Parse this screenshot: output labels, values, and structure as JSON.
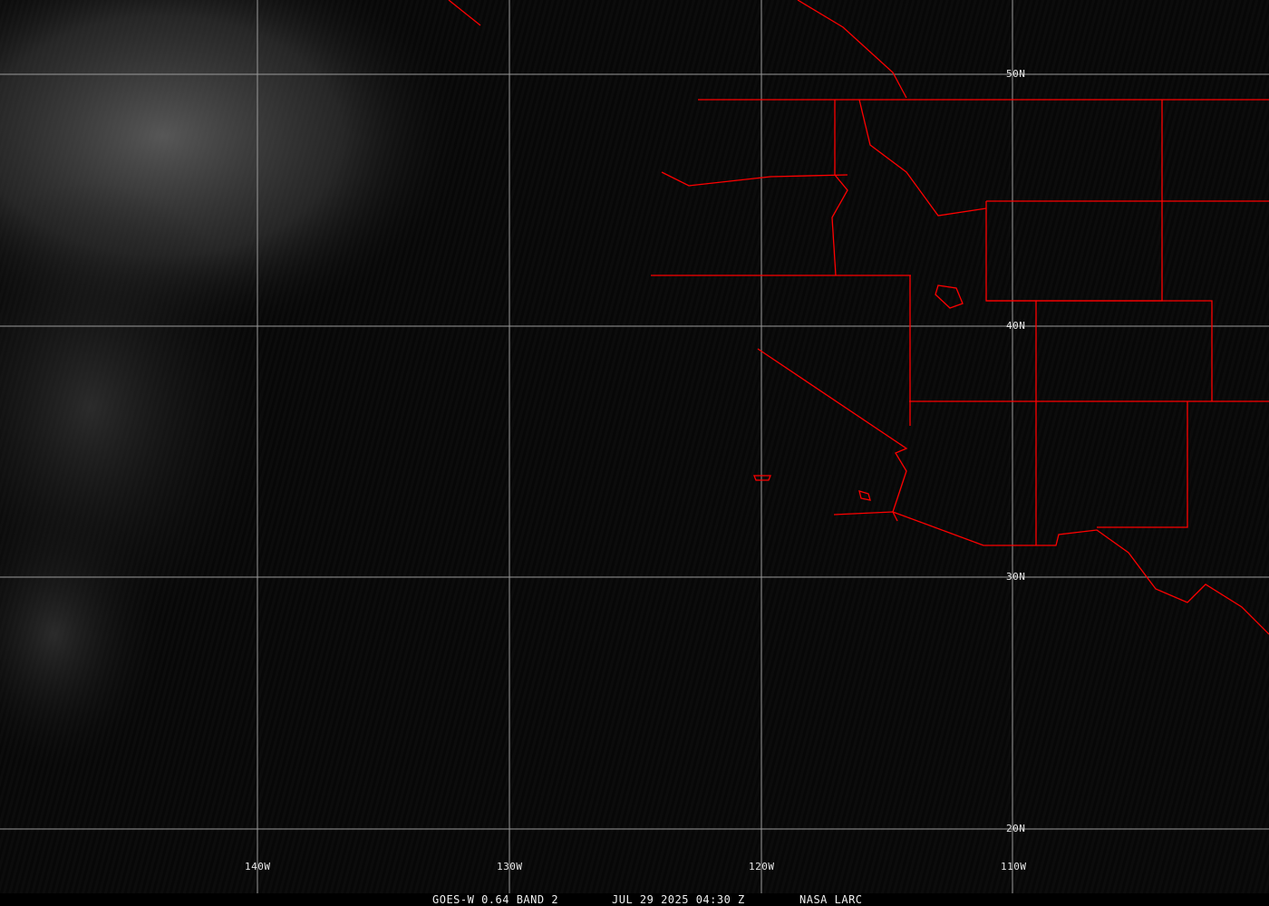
{
  "colors": {
    "background": "#070707",
    "borders": "#ff0000",
    "gridlines": "#9a9a9a",
    "labels": "#e8e8e8"
  },
  "grid": {
    "latitudes": [
      "50N",
      "40N",
      "30N",
      "20N"
    ],
    "longitudes": [
      "140W",
      "130W",
      "120W",
      "110W"
    ]
  },
  "caption": {
    "product": "GOES-W 0.64 BAND 2",
    "datetime": "JUL 29 2025 04:30 Z",
    "source": "NASA LARC"
  }
}
